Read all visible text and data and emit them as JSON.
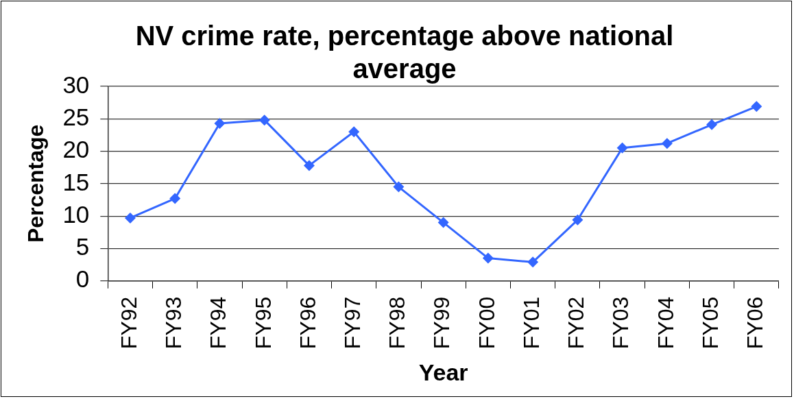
{
  "chart_data": {
    "type": "line",
    "title": "NV crime rate, percentage above national average",
    "xlabel": "Year",
    "ylabel": "Percentage",
    "categories": [
      "FY92",
      "FY93",
      "FY94",
      "FY95",
      "FY96",
      "FY97",
      "FY98",
      "FY99",
      "FY00",
      "FY01",
      "FY02",
      "FY03",
      "FY04",
      "FY05",
      "FY06"
    ],
    "values": [
      9.7,
      12.7,
      24.3,
      24.8,
      17.8,
      23.0,
      14.5,
      9.0,
      3.5,
      2.9,
      9.4,
      20.5,
      21.2,
      24.1,
      26.9
    ],
    "color": "#3366ff",
    "marker": "diamond",
    "line_style": "solid",
    "ylim": [
      0,
      30
    ],
    "yticks": [
      0,
      5,
      10,
      15,
      20,
      25,
      30
    ],
    "grid": "y"
  }
}
